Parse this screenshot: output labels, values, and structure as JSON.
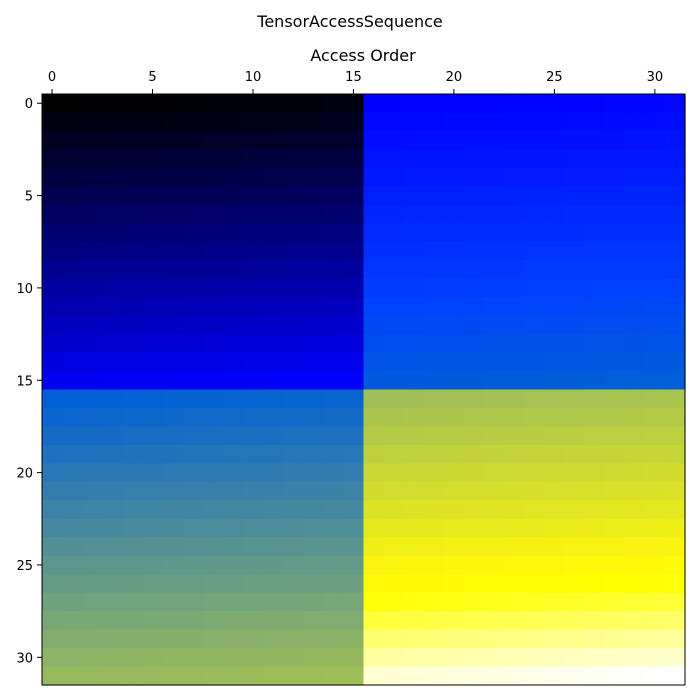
{
  "chart_data": {
    "type": "heatmap",
    "title": "TensorAccessSequence",
    "xlabel": "Access Order",
    "ylabel": "",
    "x_axis_position": "top",
    "rows": 32,
    "cols": 32,
    "colormap": "gnuplot2",
    "value_range": [
      0,
      1023
    ],
    "xlim": [
      -0.5,
      31.5
    ],
    "ylim": [
      31.5,
      -0.5
    ],
    "xticks": [
      0,
      5,
      10,
      15,
      20,
      25,
      30
    ],
    "yticks": [
      0,
      5,
      10,
      15,
      20,
      25,
      30
    ],
    "grid": false,
    "legend": "none",
    "blocks": [
      {
        "name": "top-left",
        "rows": [
          0,
          15
        ],
        "cols": [
          0,
          15
        ],
        "start": 0,
        "row_step": 4,
        "col_step": 1
      },
      {
        "name": "top-right",
        "rows": [
          0,
          15
        ],
        "cols": [
          16,
          31
        ],
        "start": 256,
        "row_step": 4,
        "col_step": 1
      },
      {
        "name": "bottom-left",
        "rows": [
          16,
          31
        ],
        "cols": [
          0,
          15
        ],
        "start": 512,
        "row_step": 4,
        "col_step": 1
      },
      {
        "name": "bottom-right",
        "rows": [
          16,
          31
        ],
        "cols": [
          16,
          31
        ],
        "start": 768,
        "row_step": 4,
        "col_step": 1
      }
    ]
  }
}
